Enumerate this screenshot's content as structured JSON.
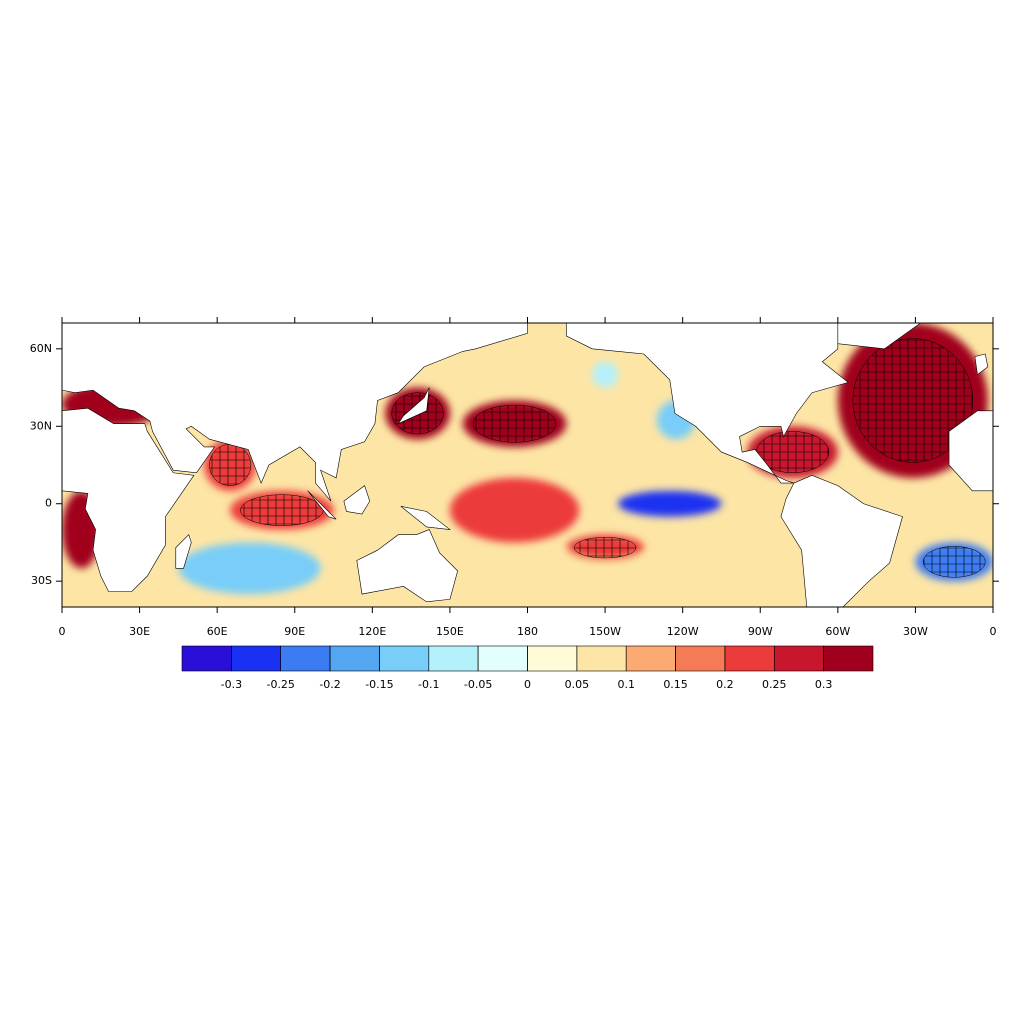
{
  "map": {
    "type": "contour_map",
    "xlim": [
      0,
      360
    ],
    "ylim": [
      -40,
      70
    ],
    "xticks": [
      0,
      {
        "value": 30,
        "label": "30E"
      },
      {
        "value": 60,
        "label": "60E"
      },
      {
        "value": 90,
        "label": "90E"
      },
      {
        "value": 120,
        "label": "120E"
      },
      {
        "value": 150,
        "label": "150E"
      },
      180,
      {
        "value": 210,
        "label": "150W"
      },
      {
        "value": 240,
        "label": "120W"
      },
      {
        "value": 270,
        "label": "90W"
      },
      {
        "value": 300,
        "label": "60W"
      },
      {
        "value": 330,
        "label": "30W"
      },
      {
        "value": 360,
        "label": "0"
      }
    ],
    "yticks": [
      {
        "value": -30,
        "label": "30S"
      },
      0,
      {
        "value": 30,
        "label": "30N"
      },
      {
        "value": 60,
        "label": "60N"
      }
    ],
    "levels": [
      -0.3,
      -0.25,
      -0.2,
      -0.15,
      -0.1,
      -0.05,
      0,
      0.05,
      0.1,
      0.15,
      0.2,
      0.25,
      0.3
    ],
    "colors": [
      "#2a0fd8",
      "#1a30f2",
      "#3c7cf2",
      "#55a6f0",
      "#78cef8",
      "#b4f1fb",
      "#e2fffe",
      "#fffbd8",
      "#fde5a6",
      "#fbaa72",
      "#f57a56",
      "#ec3b3b",
      "#c8162e",
      "#a0001e"
    ],
    "features": [
      {
        "lon": [
          0,
          40
        ],
        "lat": [
          30,
          47
        ],
        "value": 0.3,
        "hatched": false
      },
      {
        "lon": [
          300,
          358
        ],
        "lat": [
          10,
          70
        ],
        "value": 0.3,
        "hatched": true
      },
      {
        "lon": [
          265,
          300
        ],
        "lat": [
          10,
          30
        ],
        "value": 0.25,
        "hatched": true
      },
      {
        "lon": [
          150,
          200
        ],
        "lat": [
          -15,
          10
        ],
        "value": 0.2,
        "hatched": false
      },
      {
        "lon": [
          155,
          195
        ],
        "lat": [
          22,
          40
        ],
        "value": 0.3,
        "hatched": true
      },
      {
        "lon": [
          125,
          150
        ],
        "lat": [
          25,
          45
        ],
        "value": 0.3,
        "hatched": true
      },
      {
        "lon": [
          65,
          105
        ],
        "lat": [
          -10,
          5
        ],
        "value": 0.2,
        "hatched": true
      },
      {
        "lon": [
          55,
          75
        ],
        "lat": [
          5,
          25
        ],
        "value": 0.2,
        "hatched": true
      },
      {
        "lon": [
          0,
          15
        ],
        "lat": [
          -25,
          5
        ],
        "value": 0.3,
        "hatched": false
      },
      {
        "lon": [
          180,
          230
        ],
        "lat": [
          -32,
          -18
        ],
        "value": 0.05,
        "hatched": false
      },
      {
        "lon": [
          195,
          225
        ],
        "lat": [
          -22,
          -12
        ],
        "value": 0.2,
        "hatched": true
      },
      {
        "lon": [
          45,
          100
        ],
        "lat": [
          -35,
          -15
        ],
        "value": -0.15,
        "hatched": false
      },
      {
        "lon": [
          230,
          245
        ],
        "lat": [
          25,
          40
        ],
        "value": -0.15,
        "hatched": false
      },
      {
        "lon": [
          205,
          215
        ],
        "lat": [
          45,
          55
        ],
        "value": -0.1,
        "hatched": false
      },
      {
        "lon": [
          215,
          255
        ],
        "lat": [
          -5,
          5
        ],
        "value": -0.3,
        "hatched": false
      },
      {
        "lon": [
          330,
          360
        ],
        "lat": [
          -30,
          -15
        ],
        "value": -0.25,
        "hatched": true
      }
    ]
  }
}
